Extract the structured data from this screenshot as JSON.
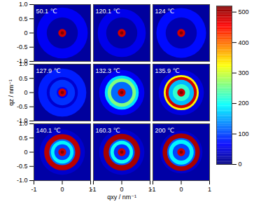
{
  "chart_data": {
    "type": "heatmap",
    "xlabel": "qxy / nm⁻¹",
    "ylabel": "qz / nm⁻¹",
    "xlim": [
      -1,
      1
    ],
    "ylim": [
      -1,
      1
    ],
    "xticks": [
      -1,
      0,
      1
    ],
    "yticks": [
      {
        "value": -1,
        "label": "-1.0"
      },
      -0.5,
      0,
      0.5,
      {
        "value": 1,
        "label": "1.0"
      }
    ],
    "panels": [
      {
        "title": "50.1 ℃",
        "rings": {
          "q": [
            1.45,
            0.9,
            0.55,
            0.14,
            0.06
          ],
          "values": [
            15,
            60,
            20,
            480,
            520
          ]
        }
      },
      {
        "title": "120.1 ℃",
        "rings": {
          "q": [
            1.45,
            0.85,
            0.55,
            0.14,
            0.06
          ],
          "values": [
            15,
            55,
            20,
            480,
            520
          ]
        }
      },
      {
        "title": "124 ℃",
        "rings": {
          "q": [
            1.45,
            0.88,
            0.55,
            0.14,
            0.06
          ],
          "values": [
            15,
            70,
            25,
            480,
            520
          ]
        }
      },
      {
        "title": "127.9 ℃",
        "rings": {
          "q": [
            1.45,
            0.85,
            0.55,
            0.45,
            0.2,
            0.14,
            0.06
          ],
          "values": [
            15,
            80,
            40,
            90,
            60,
            480,
            520
          ]
        }
      },
      {
        "title": "132.3 ℃",
        "rings": {
          "q": [
            1.45,
            0.8,
            0.6,
            0.5,
            0.38,
            0.14,
            0.06
          ],
          "values": [
            20,
            60,
            180,
            260,
            120,
            480,
            520
          ]
        }
      },
      {
        "title": "135.9 ℃",
        "rings": {
          "q": [
            1.45,
            0.8,
            0.62,
            0.55,
            0.45,
            0.3,
            0.14,
            0.06
          ],
          "values": [
            20,
            50,
            330,
            480,
            160,
            220,
            480,
            520
          ]
        }
      },
      {
        "title": "140.1 ℃",
        "rings": {
          "q": [
            1.45,
            0.8,
            0.64,
            0.46,
            0.4,
            0.28,
            0.14,
            0.06
          ],
          "values": [
            20,
            40,
            490,
            120,
            190,
            100,
            480,
            520
          ]
        }
      },
      {
        "title": "160.3 ℃",
        "rings": {
          "q": [
            1.45,
            0.8,
            0.65,
            0.46,
            0.4,
            0.28,
            0.14,
            0.06
          ],
          "values": [
            20,
            40,
            500,
            110,
            200,
            90,
            480,
            520
          ]
        }
      },
      {
        "title": "200 ℃",
        "rings": {
          "q": [
            1.45,
            0.75,
            0.66,
            0.5,
            0.44,
            0.3,
            0.14,
            0.06
          ],
          "values": [
            20,
            40,
            500,
            110,
            190,
            100,
            480,
            520
          ]
        }
      }
    ],
    "colorbar": {
      "range": [
        0,
        520
      ],
      "ticks": [
        0,
        100,
        200,
        300,
        400,
        500
      ]
    }
  }
}
